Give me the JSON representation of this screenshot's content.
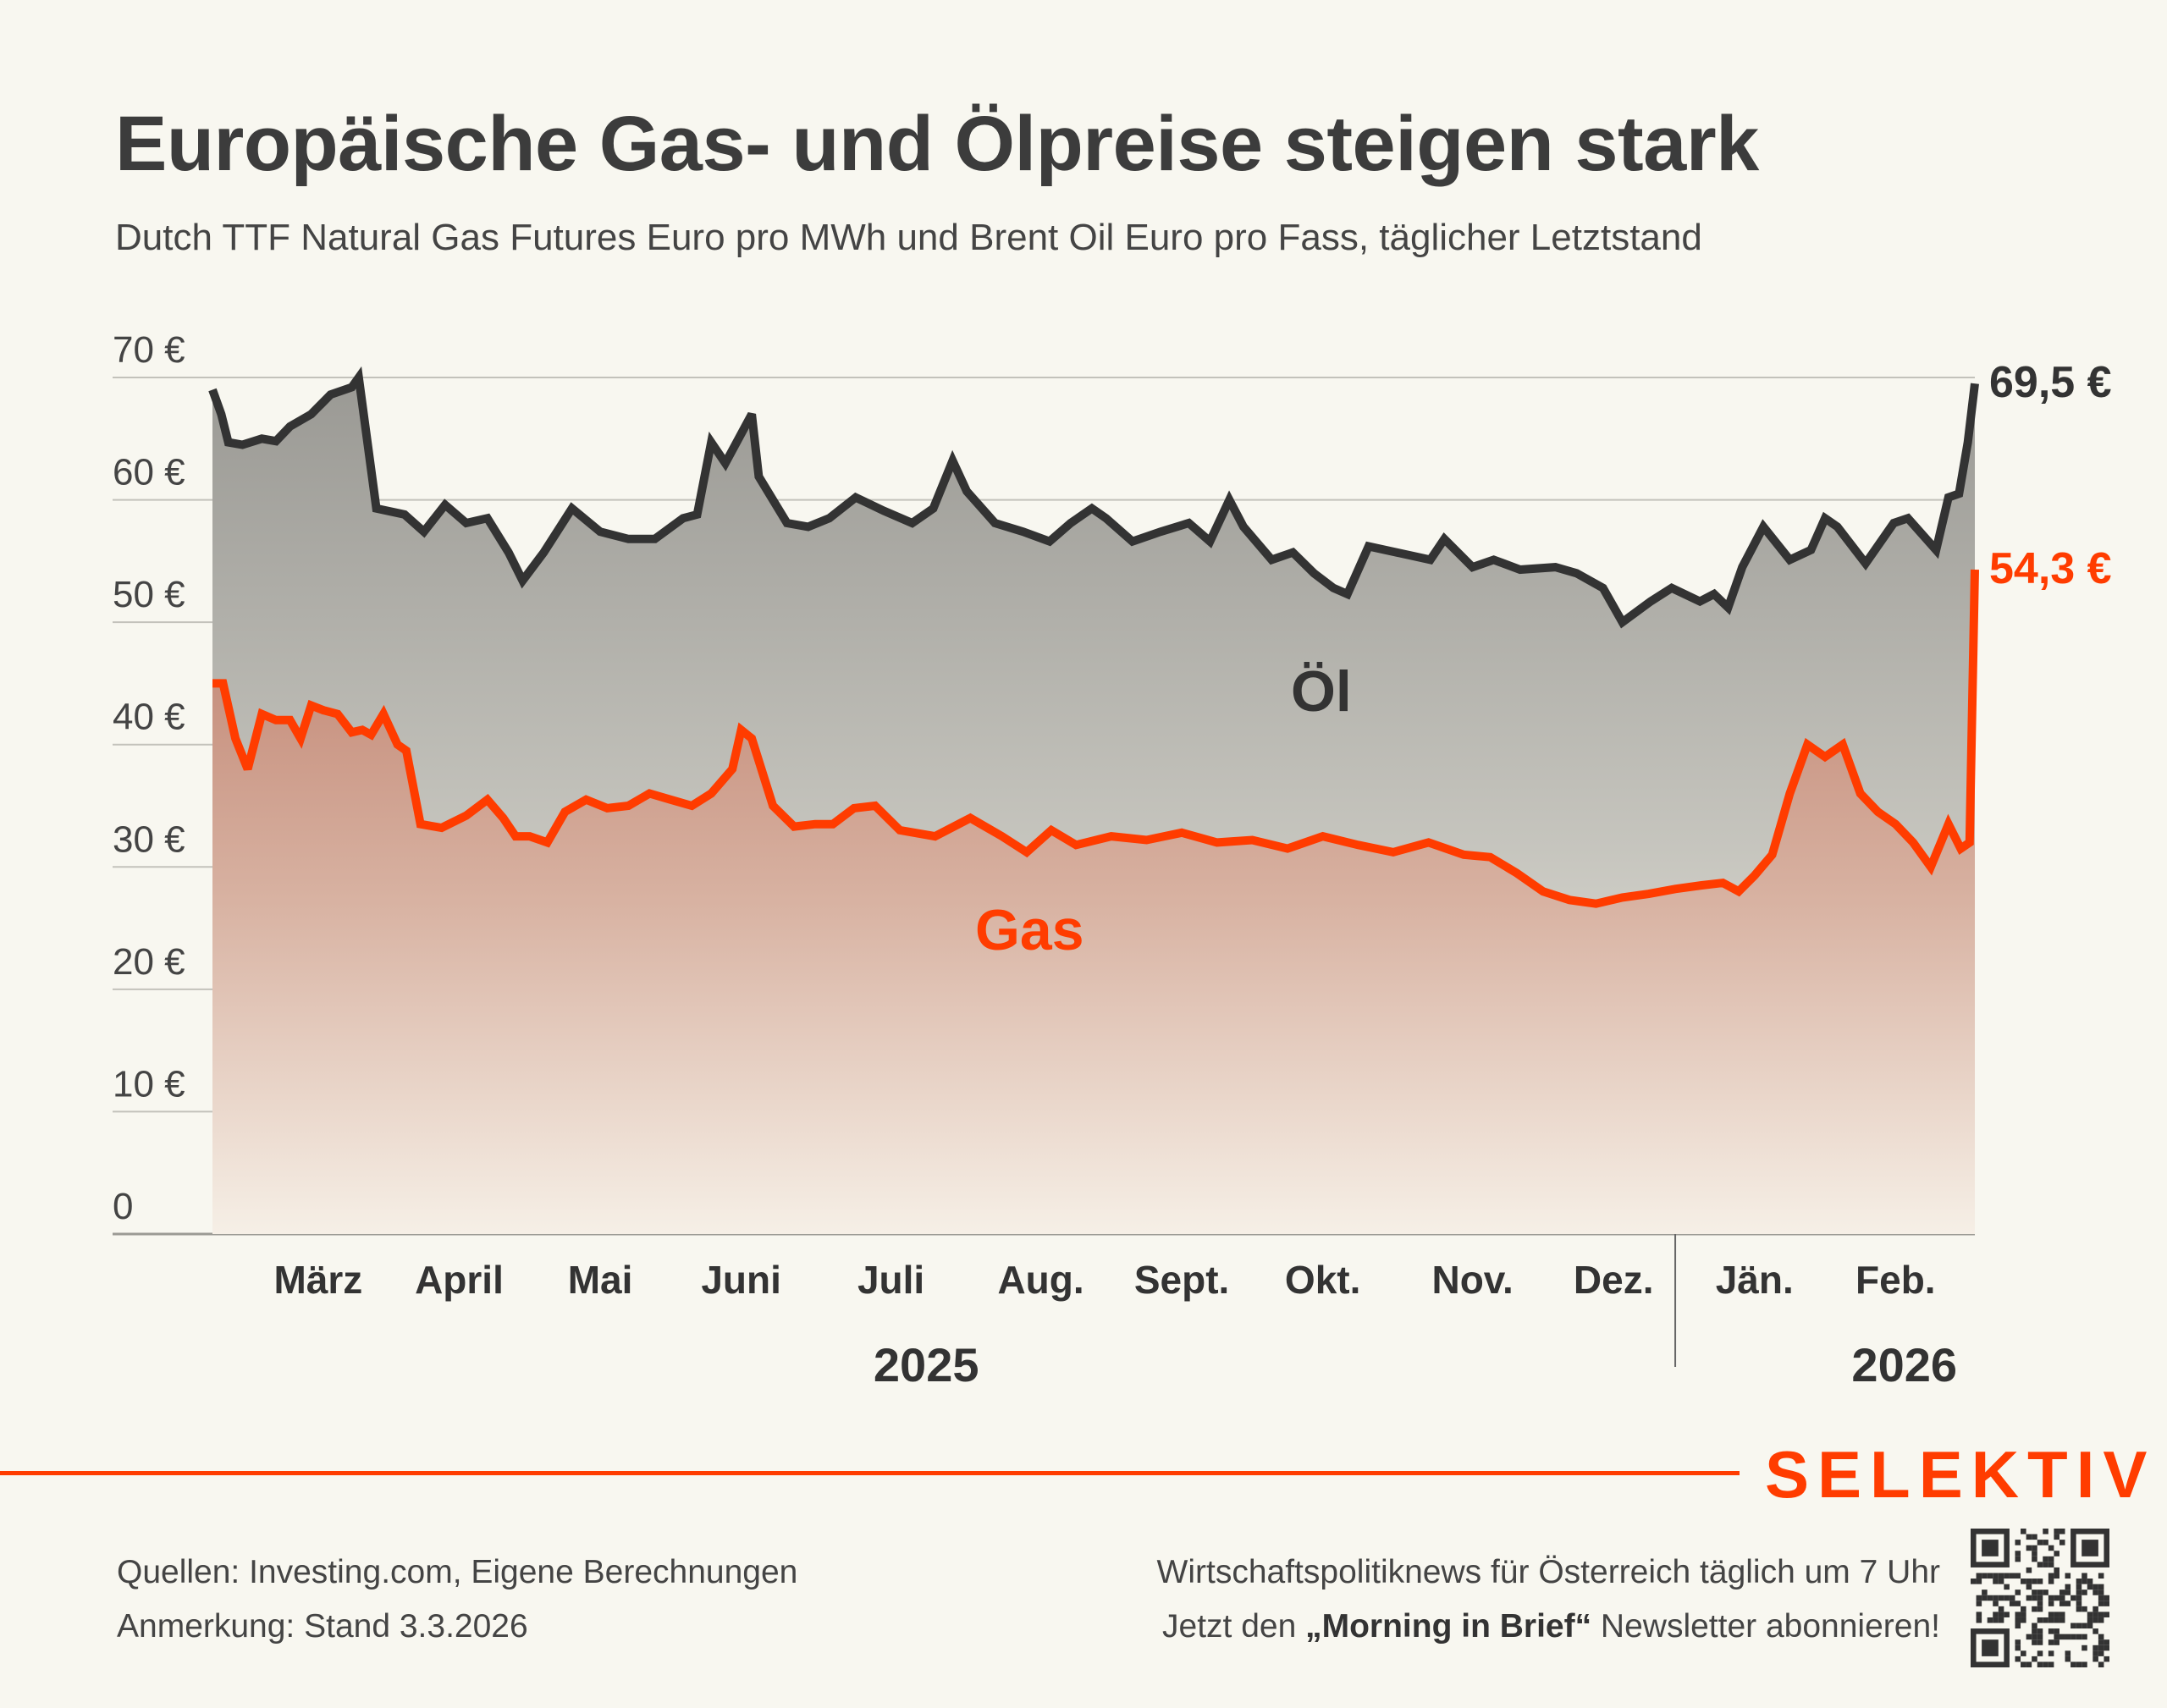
{
  "header": {
    "title": "Europäische Gas- und Ölpreise steigen stark",
    "subtitle": "Dutch TTF Natural Gas Futures Euro pro MWh und Brent Oil Euro pro Fass, täglicher Letztstand"
  },
  "chart_data": {
    "type": "area",
    "title": "Europäische Gas- und Ölpreise steigen stark",
    "subtitle": "Dutch TTF Natural Gas Futures Euro pro MWh und Brent Oil Euro pro Fass, täglicher Letztstand",
    "xlabel": "",
    "ylabel": "",
    "ylim": [
      0,
      70
    ],
    "xlim": [
      0,
      1
    ],
    "y_ticks": [
      0,
      10,
      20,
      30,
      40,
      50,
      60,
      70
    ],
    "y_tick_labels": [
      "0",
      "10 €",
      "20 €",
      "30 €",
      "40 €",
      "50 €",
      "60 €",
      "70 €"
    ],
    "x_ticks": [
      {
        "label": "März",
        "pos": 0.06
      },
      {
        "label": "April",
        "pos": 0.14
      },
      {
        "label": "Mai",
        "pos": 0.22
      },
      {
        "label": "Juni",
        "pos": 0.3
      },
      {
        "label": "Juli",
        "pos": 0.385
      },
      {
        "label": "Aug.",
        "pos": 0.47
      },
      {
        "label": "Sept.",
        "pos": 0.55
      },
      {
        "label": "Okt.",
        "pos": 0.63
      },
      {
        "label": "Nov.",
        "pos": 0.715
      },
      {
        "label": "Dez.",
        "pos": 0.795
      },
      {
        "label": "Jän.",
        "pos": 0.875
      },
      {
        "label": "Feb.",
        "pos": 0.955
      }
    ],
    "year_labels": [
      {
        "label": "2025",
        "pos": 0.405
      },
      {
        "label": "2026",
        "pos": 0.96
      }
    ],
    "year_divider_pos": 0.83,
    "grid": true,
    "series": [
      {
        "name": "Öl",
        "label": "Öl",
        "color": "#333333",
        "end_label": "69,5 €",
        "x": [
          0,
          0.005,
          0.009,
          0.017,
          0.028,
          0.036,
          0.044,
          0.056,
          0.067,
          0.079,
          0.083,
          0.093,
          0.109,
          0.12,
          0.132,
          0.144,
          0.156,
          0.168,
          0.176,
          0.188,
          0.204,
          0.22,
          0.236,
          0.251,
          0.267,
          0.275,
          0.283,
          0.291,
          0.306,
          0.31,
          0.326,
          0.338,
          0.35,
          0.365,
          0.381,
          0.397,
          0.409,
          0.42,
          0.428,
          0.444,
          0.46,
          0.475,
          0.487,
          0.499,
          0.507,
          0.522,
          0.538,
          0.554,
          0.566,
          0.577,
          0.585,
          0.601,
          0.613,
          0.625,
          0.636,
          0.644,
          0.656,
          0.672,
          0.691,
          0.699,
          0.715,
          0.727,
          0.742,
          0.762,
          0.774,
          0.789,
          0.8,
          0.816,
          0.828,
          0.844,
          0.852,
          0.86,
          0.868,
          0.88,
          0.895,
          0.907,
          0.915,
          0.922,
          0.938,
          0.954,
          0.962,
          0.978,
          0.985,
          0.991,
          0.996,
          1
        ],
        "values": [
          69,
          67,
          64.7,
          64.5,
          65,
          64.8,
          66,
          67,
          68.6,
          69.2,
          70,
          59.3,
          58.8,
          57.4,
          59.6,
          58.1,
          58.5,
          55.7,
          53.4,
          55.7,
          59.3,
          57.4,
          56.8,
          56.8,
          58.5,
          58.8,
          64.7,
          63,
          67,
          61.9,
          58.1,
          57.8,
          58.5,
          60.2,
          59.1,
          58.1,
          59.3,
          63.2,
          60.7,
          58.1,
          57.4,
          56.6,
          58.1,
          59.3,
          58.5,
          56.6,
          57.4,
          58.1,
          56.6,
          60,
          57.8,
          55.1,
          55.7,
          54,
          52.8,
          52.3,
          56.2,
          55.7,
          55.1,
          56.8,
          54.5,
          55.1,
          54.3,
          54.5,
          54,
          52.8,
          50,
          51.7,
          52.8,
          51.7,
          52.3,
          51.2,
          54.5,
          57.8,
          55.1,
          55.9,
          58.5,
          57.8,
          54.8,
          58.1,
          58.5,
          55.9,
          60.2,
          60.5,
          64.7,
          69.5
        ]
      },
      {
        "name": "Gas",
        "label": "Gas",
        "color": "#ff3c00",
        "end_label": "54,3 €",
        "x": [
          0,
          0.006,
          0.013,
          0.02,
          0.028,
          0.036,
          0.044,
          0.05,
          0.056,
          0.063,
          0.071,
          0.079,
          0.085,
          0.09,
          0.097,
          0.105,
          0.11,
          0.118,
          0.13,
          0.144,
          0.156,
          0.165,
          0.172,
          0.18,
          0.19,
          0.2,
          0.212,
          0.224,
          0.236,
          0.248,
          0.26,
          0.272,
          0.283,
          0.295,
          0.3,
          0.306,
          0.318,
          0.33,
          0.342,
          0.352,
          0.364,
          0.376,
          0.39,
          0.41,
          0.43,
          0.448,
          0.462,
          0.476,
          0.49,
          0.51,
          0.53,
          0.55,
          0.57,
          0.59,
          0.61,
          0.63,
          0.65,
          0.67,
          0.69,
          0.71,
          0.725,
          0.74,
          0.755,
          0.77,
          0.785,
          0.8,
          0.815,
          0.83,
          0.845,
          0.857,
          0.866,
          0.875,
          0.885,
          0.895,
          0.905,
          0.915,
          0.925,
          0.935,
          0.945,
          0.955,
          0.965,
          0.975,
          0.985,
          0.992,
          0.997,
          1
        ],
        "values": [
          45,
          45,
          40.5,
          38,
          42.5,
          42,
          42,
          40.5,
          43.2,
          42.8,
          42.5,
          41,
          41.2,
          40.8,
          42.5,
          40,
          39.5,
          33.5,
          33.2,
          34.2,
          35.5,
          34,
          32.5,
          32.5,
          32,
          34.5,
          35.5,
          34.8,
          35,
          36,
          35.5,
          35,
          36,
          38,
          41.2,
          40.5,
          35,
          33.3,
          33.5,
          33.5,
          34.8,
          35,
          33,
          32.5,
          34,
          32.5,
          31.2,
          33,
          31.8,
          32.5,
          32.2,
          32.8,
          32,
          32.2,
          31.5,
          32.5,
          31.8,
          31.2,
          32,
          31,
          30.8,
          29.5,
          28,
          27.3,
          27,
          27.5,
          27.8,
          28.2,
          28.5,
          28.7,
          28,
          29.3,
          31,
          36,
          40,
          39,
          40,
          36,
          34.5,
          33.5,
          32,
          30,
          33.5,
          31.5,
          32,
          54.3
        ]
      }
    ]
  },
  "footer": {
    "brand": "SELEKTIV",
    "sources": "Quellen: Investing.com, Eigene Berechnungen",
    "note": "Anmerkung: Stand 3.3.2026",
    "promo_line1": "Wirtschaftspolitiknews für Österreich täglich um 7 Uhr",
    "promo_line2_pre": "Jetzt den ",
    "promo_line2_bold": "„Morning in Brief“",
    "promo_line2_post": " Newsletter abonnieren!",
    "qr_icon": "qr-code-icon"
  }
}
